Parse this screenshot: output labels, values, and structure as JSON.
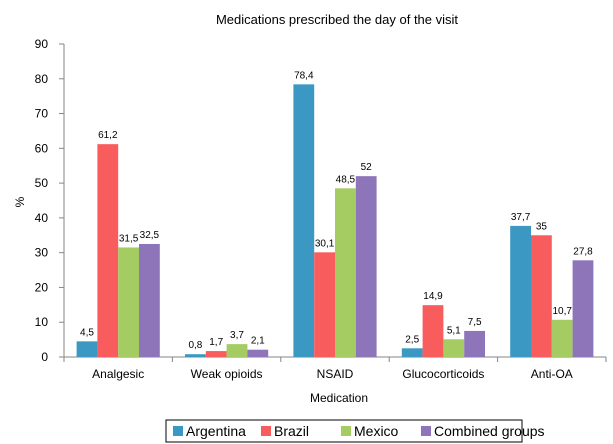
{
  "chart_data": {
    "type": "bar",
    "title": "Medications prescribed the day of the visit",
    "xlabel": "Medication",
    "ylabel": "%",
    "ylim": [
      0,
      90
    ],
    "yticks": [
      0,
      10,
      20,
      30,
      40,
      50,
      60,
      70,
      80,
      90
    ],
    "grid": false,
    "legend_position": "bottom",
    "categories": [
      "Analgesic",
      "Weak opioids",
      "NSAID",
      "Glucocorticoids",
      "Anti-OA"
    ],
    "series": [
      {
        "name": "Argentina",
        "color": "#3a98c2",
        "values": [
          4.5,
          0.8,
          78.4,
          2.5,
          37.7
        ],
        "labels": [
          "4,5",
          "0,8",
          "78,4",
          "2,5",
          "37,7"
        ]
      },
      {
        "name": "Brazil",
        "color": "#f85c5c",
        "values": [
          61.2,
          1.7,
          30.1,
          14.9,
          35
        ],
        "labels": [
          "61,2",
          "1,7",
          "30,1",
          "14,9",
          "35"
        ]
      },
      {
        "name": "Mexico",
        "color": "#a4cc62",
        "values": [
          31.5,
          3.7,
          48.5,
          5.1,
          10.7
        ],
        "labels": [
          "31,5",
          "3,7",
          "48,5",
          "5,1",
          "10,7"
        ]
      },
      {
        "name": "Combined groups",
        "color": "#8e74b8",
        "values": [
          32.5,
          2.1,
          52,
          7.5,
          27.8
        ],
        "labels": [
          "32,5",
          "2,1",
          "52",
          "7,5",
          "27,8"
        ]
      }
    ]
  }
}
